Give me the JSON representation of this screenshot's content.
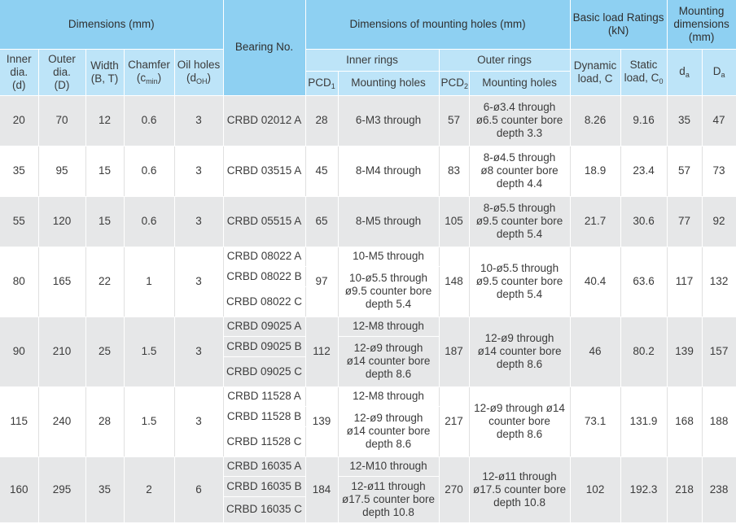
{
  "header": {
    "dimensions": "Dimensions (mm)",
    "bearing_no": "Bearing No.",
    "mounting_holes_dims": "Dimensions of mounting holes (mm)",
    "basic_load_line1": "Basic load Ratings",
    "basic_load_line2": "(kN)",
    "mounting_dims_line1": "Mounting",
    "mounting_dims_line2": "dimensions",
    "mounting_dims_line3": "(mm)",
    "inner_rings": "Inner rings",
    "outer_rings": "Outer rings",
    "inner_dia_line1": "Inner",
    "inner_dia_line2": "dia.",
    "inner_dia_line3": "(d)",
    "outer_dia_line1": "Outer",
    "outer_dia_line2": "dia.",
    "outer_dia_line3": "(D)",
    "width_line1": "Width",
    "width_line2": "(B, T)",
    "chamfer_line1": "Chamfer",
    "chamfer_line2_prefix": "(c",
    "chamfer_line2_sub": "min",
    "chamfer_line2_suffix": ")",
    "oil_holes_line1": "Oil holes",
    "oil_holes_line2_prefix": "(d",
    "oil_holes_line2_sub": "OH",
    "oil_holes_line2_suffix": ")",
    "pcd1_main": "PCD",
    "pcd1_sub": "1",
    "pcd2_main": "PCD",
    "pcd2_sub": "2",
    "mounting_holes": "Mounting holes",
    "dynamic_line1": "Dynamic",
    "dynamic_line2": "load, C",
    "static_line1": "Static",
    "static_line2_prefix": "load, C",
    "static_line2_sub": "0",
    "da_main": "d",
    "da_sub": "a",
    "Da_main": "D",
    "Da_sub": "a"
  },
  "rows": [
    {
      "d": "20",
      "D": "70",
      "B": "12",
      "c": "0.6",
      "oil": "3",
      "bearings": [
        "CRBD 02012 A"
      ],
      "pcd1": "28",
      "inner_holes": [
        [
          "6-M3 through"
        ]
      ],
      "pcd2": "57",
      "outer_holes": [
        "6-ø3.4 through",
        "ø6.5 counter bore",
        "depth 3.3"
      ],
      "dynamic": "8.26",
      "static": "9.16",
      "da": "35",
      "Da": "47"
    },
    {
      "d": "35",
      "D": "95",
      "B": "15",
      "c": "0.6",
      "oil": "3",
      "bearings": [
        "CRBD 03515 A"
      ],
      "pcd1": "45",
      "inner_holes": [
        [
          "8-M4 through"
        ]
      ],
      "pcd2": "83",
      "outer_holes": [
        "8-ø4.5 through",
        "ø8 counter bore",
        "depth 4.4"
      ],
      "dynamic": "18.9",
      "static": "23.4",
      "da": "57",
      "Da": "73"
    },
    {
      "d": "55",
      "D": "120",
      "B": "15",
      "c": "0.6",
      "oil": "3",
      "bearings": [
        "CRBD 05515 A"
      ],
      "pcd1": "65",
      "inner_holes": [
        [
          "8-M5 through"
        ]
      ],
      "pcd2": "105",
      "outer_holes": [
        "8-ø5.5 through",
        "ø9.5 counter bore",
        "depth 5.4"
      ],
      "dynamic": "21.7",
      "static": "30.6",
      "da": "77",
      "Da": "92"
    },
    {
      "d": "80",
      "D": "165",
      "B": "22",
      "c": "1",
      "oil": "3",
      "bearings": [
        "CRBD 08022 A",
        "CRBD 08022 B",
        "CRBD 08022 C"
      ],
      "pcd1": "97",
      "inner_holes": [
        [
          "10-M5 through"
        ],
        [
          "10-ø5.5 through",
          "ø9.5 counter bore",
          "depth 5.4"
        ]
      ],
      "pcd2": "148",
      "outer_holes": [
        "10-ø5.5 through",
        "ø9.5 counter bore",
        "depth 5.4"
      ],
      "dynamic": "40.4",
      "static": "63.6",
      "da": "117",
      "Da": "132"
    },
    {
      "d": "90",
      "D": "210",
      "B": "25",
      "c": "1.5",
      "oil": "3",
      "bearings": [
        "CRBD 09025 A",
        "CRBD 09025 B",
        "CRBD 09025 C"
      ],
      "pcd1": "112",
      "inner_holes": [
        [
          "12-M8 through"
        ],
        [
          "12-ø9 through",
          "ø14 counter bore",
          "depth 8.6"
        ]
      ],
      "pcd2": "187",
      "outer_holes": [
        "12-ø9 through",
        "ø14 counter bore",
        "depth 8.6"
      ],
      "dynamic": "46",
      "static": "80.2",
      "da": "139",
      "Da": "157"
    },
    {
      "d": "115",
      "D": "240",
      "B": "28",
      "c": "1.5",
      "oil": "3",
      "bearings": [
        "CRBD 11528 A",
        "CRBD 11528 B",
        "CRBD 11528 C"
      ],
      "pcd1": "139",
      "inner_holes": [
        [
          "12-M8 through"
        ],
        [
          "12-ø9 through",
          "ø14 counter bore",
          "depth 8.6"
        ]
      ],
      "pcd2": "217",
      "outer_holes": [
        "12-ø9 through ø14",
        "counter bore",
        "depth 8.6"
      ],
      "dynamic": "73.1",
      "static": "131.9",
      "da": "168",
      "Da": "188"
    },
    {
      "d": "160",
      "D": "295",
      "B": "35",
      "c": "2",
      "oil": "6",
      "bearings": [
        "CRBD 16035 A",
        "CRBD 16035 B",
        "CRBD 16035 C"
      ],
      "pcd1": "184",
      "inner_holes": [
        [
          "12-M10 through"
        ],
        [
          "12-ø11 through",
          "ø17.5 counter bore",
          "depth 10.8"
        ]
      ],
      "pcd2": "270",
      "outer_holes": [
        "12-ø11 through",
        "ø17.5 counter bore",
        "depth 10.8"
      ],
      "dynamic": "102",
      "static": "192.3",
      "da": "218",
      "Da": "238"
    }
  ]
}
